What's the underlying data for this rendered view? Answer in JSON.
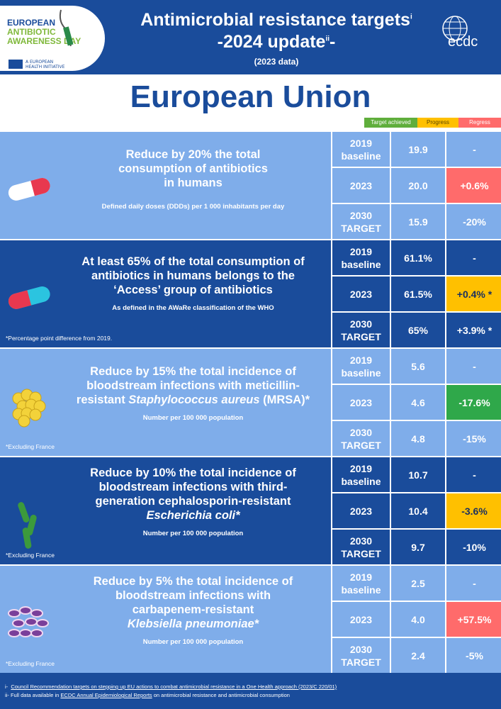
{
  "header": {
    "logo_left": {
      "line1": "EUROPEAN",
      "line2": "ANTIBIOTIC",
      "line3": "AWARENESS DAY",
      "tagline1": "A EUROPEAN",
      "tagline2": "HEALTH INITIATIVE"
    },
    "title_line1": "Antimicrobial resistance targets",
    "title_sup1": "i",
    "title_line2": "-2024 update",
    "title_sup2": "ii",
    "title_line2_end": "-",
    "subtitle": "(2023 data)",
    "logo_right": "ecdc"
  },
  "region": "European Union",
  "legend": [
    {
      "label": "Target achieved",
      "color": "#5fae3c",
      "text_color": "#ffffff"
    },
    {
      "label": "Progress",
      "color": "#ffc000",
      "text_color": "#5a4500"
    },
    {
      "label": "Regress",
      "color": "#ff6b6b",
      "text_color": "#ffffff"
    }
  ],
  "colors": {
    "light": "#7fadea",
    "dark": "#1a4c9b",
    "achieved": "#2fa84a",
    "progress": "#ffc000",
    "regress": "#ff6b6b"
  },
  "targets": [
    {
      "theme": "light",
      "icon": "pill-red-white-icon",
      "heading": [
        "Reduce by 20% the total",
        "consumption of antibiotics",
        "in humans"
      ],
      "subheading": "Defined daily doses (DDDs) per 1 000 inhabitants per day",
      "note": "",
      "rows": [
        {
          "label": [
            "2019",
            "baseline"
          ],
          "value": "19.9",
          "change": "-",
          "status": "none"
        },
        {
          "label": [
            "2023"
          ],
          "value": "20.0",
          "change": "+0.6%",
          "status": "regress"
        },
        {
          "label": [
            "2030",
            "TARGET"
          ],
          "value": "15.9",
          "change": "-20%",
          "status": "none"
        }
      ]
    },
    {
      "theme": "dark",
      "icon": "pill-red-cyan-icon",
      "heading": [
        "At least 65% of the total consumption of",
        "antibiotics in humans belongs to the",
        "‘Access’ group of antibiotics"
      ],
      "subheading": "As defined in the AWaRe classification of the WHO",
      "note": "*Percentage point difference from 2019.",
      "rows": [
        {
          "label": [
            "2019",
            "baseline"
          ],
          "value": "61.1%",
          "change": "-",
          "status": "none"
        },
        {
          "label": [
            "2023"
          ],
          "value": "61.5%",
          "change": "+0.4% *",
          "status": "progress"
        },
        {
          "label": [
            "2030",
            "TARGET"
          ],
          "value": "65%",
          "change": "+3.9% *",
          "status": "none"
        }
      ]
    },
    {
      "theme": "light",
      "icon": "staphylococcus-icon",
      "heading": [
        "Reduce by 15% the total incidence of",
        "bloodstream infections with meticillin-",
        "resistant <i>Staphylococcus aureus</i> (MRSA)*"
      ],
      "subheading": "Number per 100 000 population",
      "note": "*Excluding France",
      "rows": [
        {
          "label": [
            "2019",
            "baseline"
          ],
          "value": "5.6",
          "change": "-",
          "status": "none"
        },
        {
          "label": [
            "2023"
          ],
          "value": "4.6",
          "change": "-17.6%",
          "status": "achieved"
        },
        {
          "label": [
            "2030",
            "TARGET"
          ],
          "value": "4.8",
          "change": "-15%",
          "status": "none"
        }
      ]
    },
    {
      "theme": "dark",
      "icon": "e-coli-icon",
      "heading": [
        "Reduce by 10% the total incidence of",
        "bloodstream infections with third-",
        "generation cephalosporin-resistant",
        "<i>Escherichia coli*</i>"
      ],
      "subheading": "Number per 100 000 population",
      "note": "*Excluding France",
      "rows": [
        {
          "label": [
            "2019",
            "baseline"
          ],
          "value": "10.7",
          "change": "-",
          "status": "none"
        },
        {
          "label": [
            "2023"
          ],
          "value": "10.4",
          "change": "-3.6%",
          "status": "progress"
        },
        {
          "label": [
            "2030",
            "TARGET"
          ],
          "value": "9.7",
          "change": "-10%",
          "status": "none"
        }
      ]
    },
    {
      "theme": "light",
      "icon": "klebsiella-icon",
      "heading": [
        "Reduce by 5% the total incidence of",
        "bloodstream infections with",
        "carbapenem-resistant",
        "<i>Klebsiella pneumoniae*</i>"
      ],
      "subheading": "Number per 100 000 population",
      "note": "*Excluding France",
      "rows": [
        {
          "label": [
            "2019",
            "baseline"
          ],
          "value": "2.5",
          "change": "-",
          "status": "none"
        },
        {
          "label": [
            "2023"
          ],
          "value": "4.0",
          "change": "+57.5%",
          "status": "regress"
        },
        {
          "label": [
            "2030",
            "TARGET"
          ],
          "value": "2.4",
          "change": "-5%",
          "status": "none"
        }
      ]
    }
  ],
  "footer": {
    "note1_marker": "i-",
    "note1_link": "Council Recommendation targets on stepping up EU actions to combat antimicrobial resistance in a One Health approach (2023/C 220/01)",
    "note2_marker": "ii-",
    "note2_prefix": "Full data available in",
    "note2_link": "ECDC Annual Epidemiological Reports",
    "note2_suffix": "on antimicrobial resistance and antimicrobial consumption"
  }
}
